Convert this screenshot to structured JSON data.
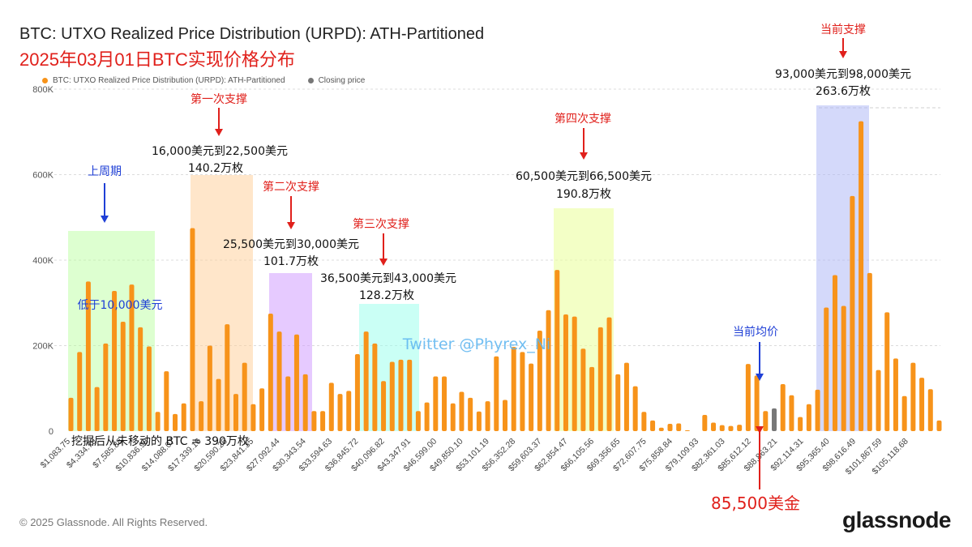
{
  "header": {
    "title": "BTC: UTXO Realized Price Distribution (URPD): ATH-Partitioned",
    "subtitle": "2025年03月01日BTC实现价格分布"
  },
  "legend": [
    {
      "label": "BTC: UTXO Realized Price Distribution (URPD): ATH-Partitioned",
      "color": "#f7931a"
    },
    {
      "label": "Closing price",
      "color": "#777777"
    }
  ],
  "colors": {
    "bar": "#f7931a",
    "closing_bar": "#777777",
    "annotation_red": "#e0201b",
    "annotation_blue": "#1f3fd6"
  },
  "chart_data": {
    "type": "bar",
    "ylim": [
      0,
      800000
    ],
    "yticks": [
      "0",
      "200K",
      "400K",
      "600K",
      "800K"
    ],
    "grid": true,
    "legend_position": "top-left",
    "xticks": [
      "$1,083.75",
      "$4,334.79",
      "$7,585.88",
      "$10,836.98",
      "$14,088.07",
      "$17,339.16",
      "$20,590.26",
      "$23,841.35",
      "$27,092.44",
      "$30,343.54",
      "$33,594.63",
      "$36,845.72",
      "$40,096.82",
      "$43,347.91",
      "$46,599.00",
      "$49,850.10",
      "$53,101.19",
      "$56,352.28",
      "$59,603.37",
      "$62,854.47",
      "$66,105.56",
      "$69,356.65",
      "$72,607.75",
      "$75,858.84",
      "$79,109.93",
      "$82,361.03",
      "$85,612.12",
      "$88,863.21",
      "$92,114.31",
      "$95,365.40",
      "$98,616.49",
      "$101,867.59",
      "$105,118.68"
    ],
    "values": [
      78000,
      185000,
      350000,
      103000,
      205000,
      328000,
      256000,
      343000,
      243000,
      198000,
      45000,
      140000,
      40000,
      65000,
      475000,
      70000,
      200000,
      122000,
      250000,
      87000,
      160000,
      63000,
      100000,
      275000,
      233000,
      128000,
      226000,
      133000,
      47000,
      47000,
      113000,
      87000,
      94000,
      180000,
      233000,
      205000,
      117000,
      162000,
      167000,
      167000,
      47000,
      67000,
      128000,
      128000,
      65000,
      92000,
      78000,
      46000,
      70000,
      175000,
      73000,
      197000,
      185000,
      158000,
      235000,
      283000,
      377000,
      273000,
      268000,
      193000,
      150000,
      243000,
      266000,
      133000,
      160000,
      105000,
      45000,
      25000,
      8000,
      17000,
      18000,
      2000,
      0,
      38000,
      20000,
      14000,
      12000,
      15000,
      157000,
      130000,
      47000,
      53000,
      110000,
      84000,
      33000,
      63000,
      97000,
      289000,
      365000,
      293000,
      550000,
      725000,
      370000,
      143000,
      278000,
      170000,
      82000,
      160000,
      125000,
      98000,
      25000
    ],
    "closing_price_index": 81,
    "annotations": {
      "previous_cycle": "上周期",
      "below_10k": "低于10,000美元",
      "support_1": {
        "title": "第一次支撑",
        "range": "16,000美元到22,500美元",
        "amount": "140.2万枚"
      },
      "support_2": {
        "title": "第二次支撑",
        "range": "25,500美元到30,000美元",
        "amount": "101.7万枚"
      },
      "support_3": {
        "title": "第三次支撑",
        "range": "36,500美元到43,000美元",
        "amount": "128.2万枚"
      },
      "support_4": {
        "title": "第四次支撑",
        "range": "60,500美元到66,500美元",
        "amount": "190.8万枚"
      },
      "current_support": {
        "title": "当前支撑",
        "range": "93,000美元到98,000美元",
        "amount": "263.6万枚"
      },
      "current_avg": "当前均价",
      "closing": "85,500美金",
      "unmoved": "挖掘后从未移动的 BTC = 390万枚",
      "watermark": "Twitter @Phyrex_Ni"
    }
  },
  "footer": {
    "copyright": "© 2025 Glassnode. All Rights Reserved.",
    "logo": "glassnode"
  }
}
